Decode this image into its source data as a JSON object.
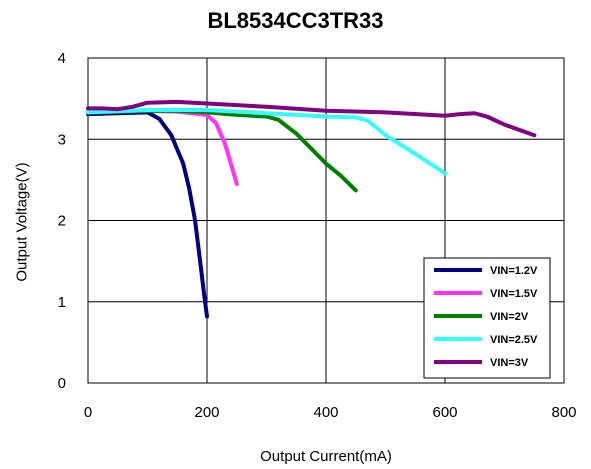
{
  "chart_data": {
    "type": "line",
    "title": "BL8534CC3TR33",
    "xlabel": "Output Current(mA)",
    "ylabel": "Output Voltage(V)",
    "xlim": [
      0,
      800
    ],
    "ylim": [
      0,
      4
    ],
    "xticks": [
      "0",
      "200",
      "400",
      "600",
      "800"
    ],
    "yticks": [
      "0",
      "1",
      "2",
      "3",
      "4"
    ],
    "grid": true,
    "legend_position": "bottom-right",
    "series": [
      {
        "name": "VIN=1.2V",
        "color": "#000080",
        "x": [
          0,
          50,
          100,
          120,
          140,
          160,
          170,
          180,
          185,
          190,
          195,
          200
        ],
        "y": [
          3.31,
          3.32,
          3.33,
          3.25,
          3.05,
          2.7,
          2.4,
          2.0,
          1.7,
          1.4,
          1.1,
          0.82
        ]
      },
      {
        "name": "VIN=1.5V",
        "color": "#ff33ff",
        "x": [
          0,
          50,
          100,
          150,
          200,
          215,
          230,
          240,
          250
        ],
        "y": [
          3.33,
          3.34,
          3.35,
          3.34,
          3.3,
          3.2,
          2.95,
          2.7,
          2.45
        ]
      },
      {
        "name": "VIN=2V",
        "color": "#008000",
        "x": [
          0,
          50,
          100,
          150,
          200,
          250,
          300,
          320,
          350,
          380,
          400,
          425,
          450
        ],
        "y": [
          3.33,
          3.34,
          3.35,
          3.35,
          3.33,
          3.3,
          3.28,
          3.24,
          3.07,
          2.85,
          2.7,
          2.55,
          2.37
        ]
      },
      {
        "name": "VIN=2.5V",
        "color": "#33ffff",
        "x": [
          0,
          100,
          200,
          300,
          400,
          450,
          470,
          500,
          550,
          600
        ],
        "y": [
          3.33,
          3.36,
          3.36,
          3.32,
          3.28,
          3.27,
          3.23,
          3.05,
          2.82,
          2.58
        ]
      },
      {
        "name": "VIN=3V",
        "color": "#800080",
        "x": [
          0,
          25,
          50,
          75,
          100,
          150,
          200,
          300,
          400,
          500,
          600,
          625,
          650,
          670,
          700,
          750
        ],
        "y": [
          3.38,
          3.38,
          3.37,
          3.4,
          3.45,
          3.46,
          3.44,
          3.4,
          3.35,
          3.33,
          3.29,
          3.31,
          3.32,
          3.28,
          3.18,
          3.05
        ]
      }
    ]
  }
}
